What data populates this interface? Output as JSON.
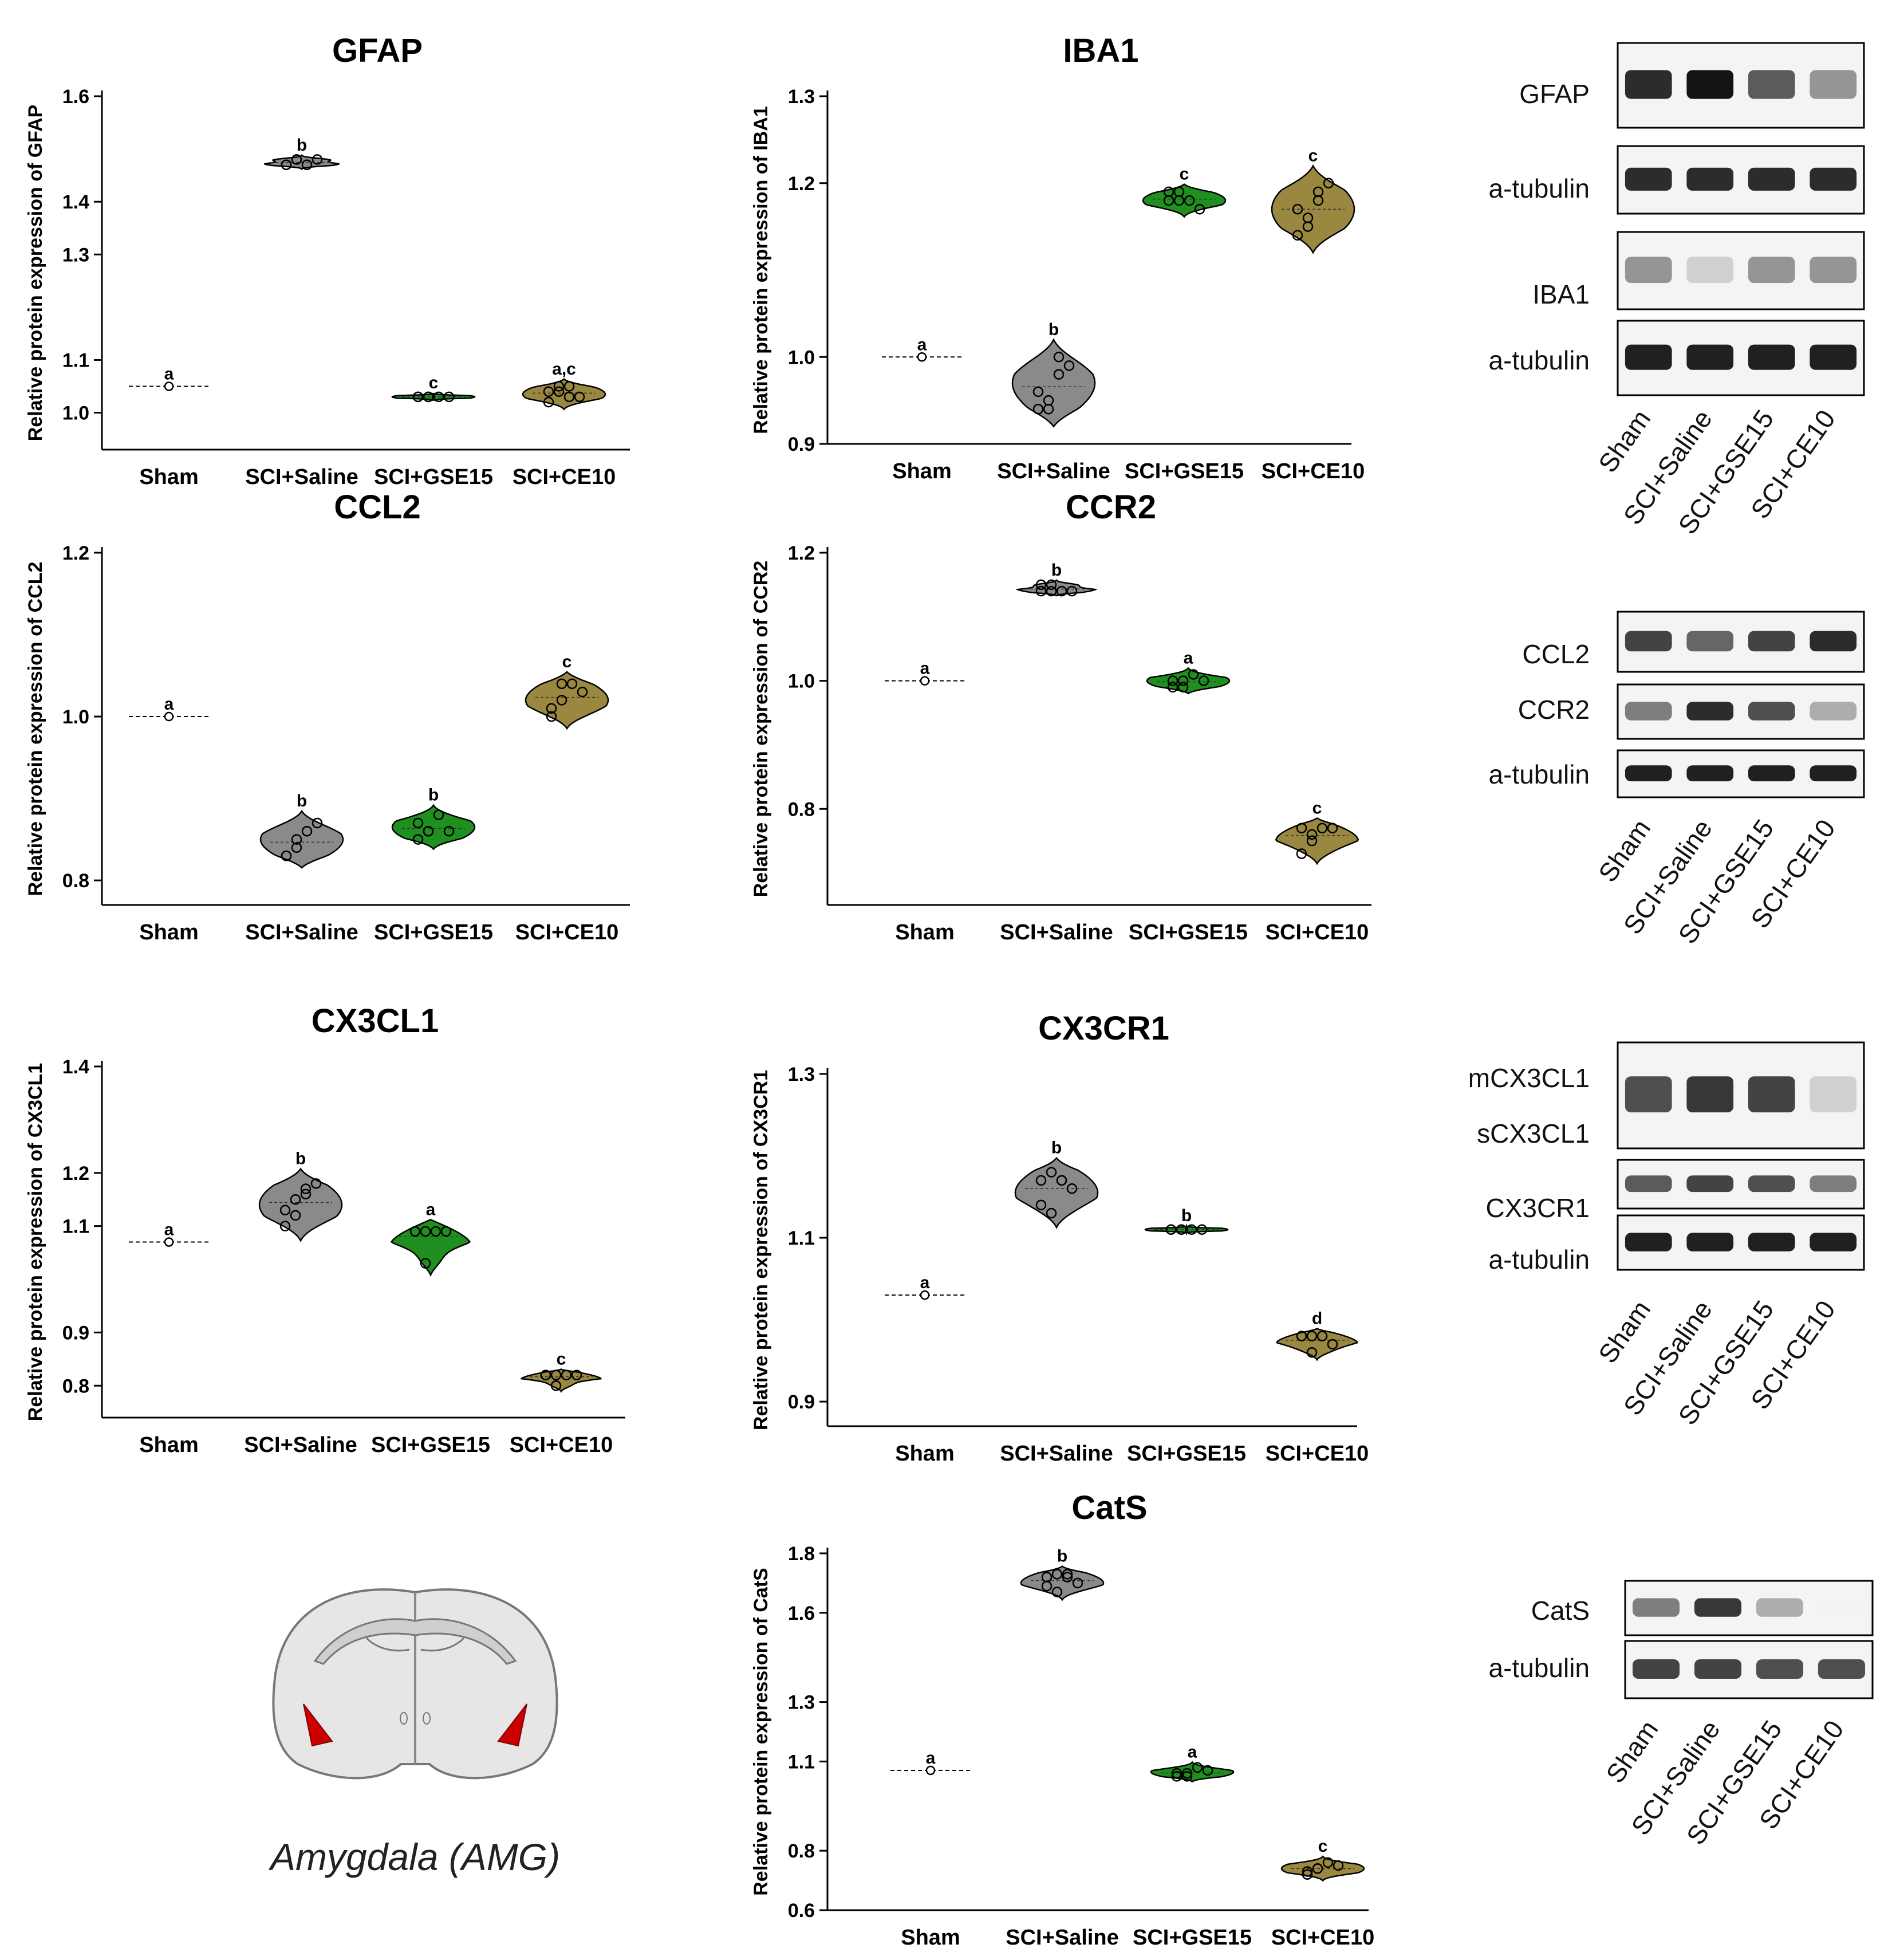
{
  "colors": {
    "Sham": "#ffffff",
    "SCI+Saline": "#8a8a8a",
    "SCI+GSE15": "#1f8f1f",
    "SCI+CE10": "#9a8840"
  },
  "chart_data": [
    {
      "type": "violin",
      "title": "GFAP",
      "ylabel": "Relative protein expression of GFAP",
      "ylim": [
        0.93,
        1.6
      ],
      "yticks": [
        "1.0",
        "1.1",
        "1.3",
        "1.4",
        "1.6"
      ],
      "categories": [
        "Sham",
        "SCI+Saline",
        "SCI+GSE15",
        "SCI+CE10"
      ],
      "series": [
        {
          "values": [
            1.05
          ],
          "letter": "a"
        },
        {
          "values": [
            1.47,
            1.48,
            1.47,
            1.48,
            1.47,
            1.48,
            1.47
          ],
          "letter": "b"
        },
        {
          "values": [
            1.03,
            1.03,
            1.03,
            1.03,
            1.03,
            1.03
          ],
          "letter": "c"
        },
        {
          "values": [
            1.02,
            1.04,
            1.05,
            1.03,
            1.04,
            1.05,
            1.03
          ],
          "letter": "a,c"
        }
      ]
    },
    {
      "type": "violin",
      "title": "IBA1",
      "ylabel": "Relative protein expression of IBA1",
      "ylim": [
        0.9,
        1.3
      ],
      "yticks": [
        "0.9",
        "1.0",
        "1.2",
        "1.3"
      ],
      "categories": [
        "Sham",
        "SCI+Saline",
        "SCI+GSE15",
        "SCI+CE10"
      ],
      "series": [
        {
          "values": [
            1.0
          ],
          "letter": "a"
        },
        {
          "values": [
            0.94,
            0.95,
            0.98,
            0.99,
            0.96,
            0.94,
            1.0
          ],
          "letter": "b"
        },
        {
          "values": [
            1.18,
            1.19,
            1.18,
            1.17,
            1.19,
            1.18
          ],
          "letter": "c"
        },
        {
          "values": [
            1.14,
            1.16,
            1.19,
            1.2,
            1.17,
            1.15,
            1.18
          ],
          "letter": "c"
        }
      ]
    },
    {
      "type": "violin",
      "title": "CCL2",
      "ylabel": "Relative protein expression of CCL2",
      "ylim": [
        0.77,
        1.2
      ],
      "yticks": [
        "0.8",
        "1.0",
        "1.2"
      ],
      "categories": [
        "Sham",
        "SCI+Saline",
        "SCI+GSE15",
        "SCI+CE10"
      ],
      "series": [
        {
          "values": [
            1.0
          ],
          "letter": "a"
        },
        {
          "values": [
            0.83,
            0.84,
            0.86,
            0.87,
            0.83,
            0.85
          ],
          "letter": "b"
        },
        {
          "values": [
            0.85,
            0.86,
            0.88,
            0.86,
            0.87,
            0.86
          ],
          "letter": "b"
        },
        {
          "values": [
            1.0,
            1.02,
            1.04,
            1.03,
            1.01,
            1.04
          ],
          "letter": "c"
        }
      ]
    },
    {
      "type": "violin",
      "title": "CCR2",
      "ylabel": "Relative protein expression of CCR2",
      "ylim": [
        0.65,
        1.2
      ],
      "yticks": [
        "0.8",
        "1.0",
        "1.2"
      ],
      "categories": [
        "Sham",
        "SCI+Saline",
        "SCI+GSE15",
        "SCI+CE10"
      ],
      "series": [
        {
          "values": [
            1.0
          ],
          "letter": "a"
        },
        {
          "values": [
            1.14,
            1.15,
            1.14,
            1.14,
            1.15,
            1.14
          ],
          "letter": "b"
        },
        {
          "values": [
            0.99,
            1.0,
            1.01,
            1.0,
            1.0,
            0.99
          ],
          "letter": "a"
        },
        {
          "values": [
            0.73,
            0.75,
            0.77,
            0.77,
            0.77,
            0.76
          ],
          "letter": "c"
        }
      ]
    },
    {
      "type": "violin",
      "title": "CX3CL1",
      "ylabel": "Relative protein expression of CX3CL1",
      "ylim": [
        0.74,
        1.4
      ],
      "yticks": [
        "0.8",
        "0.9",
        "1.1",
        "1.2",
        "1.4"
      ],
      "categories": [
        "Sham",
        "SCI+Saline",
        "SCI+GSE15",
        "SCI+CE10"
      ],
      "series": [
        {
          "values": [
            1.07
          ],
          "letter": "a"
        },
        {
          "values": [
            1.13,
            1.15,
            1.17,
            1.18,
            1.1,
            1.12,
            1.16
          ],
          "letter": "b"
        },
        {
          "values": [
            1.09,
            1.09,
            1.09,
            1.09,
            1.09,
            1.03
          ],
          "letter": "a"
        },
        {
          "values": [
            0.82,
            0.82,
            0.82,
            0.82,
            0.82,
            0.8
          ],
          "letter": "c"
        }
      ]
    },
    {
      "type": "violin",
      "title": "CX3CR1",
      "ylabel": "Relative protein expression of CX3CR1",
      "ylim": [
        0.87,
        1.3
      ],
      "yticks": [
        "0.9",
        "1.1",
        "1.3"
      ],
      "categories": [
        "Sham",
        "SCI+Saline",
        "SCI+GSE15",
        "SCI+CE10"
      ],
      "series": [
        {
          "values": [
            1.03
          ],
          "letter": "a"
        },
        {
          "values": [
            1.17,
            1.18,
            1.17,
            1.16,
            1.14,
            1.13,
            1.17
          ],
          "letter": "b"
        },
        {
          "values": [
            1.11,
            1.11,
            1.11,
            1.11,
            1.11,
            1.11
          ],
          "letter": "b"
        },
        {
          "values": [
            0.98,
            0.98,
            0.98,
            0.97,
            0.98,
            0.96
          ],
          "letter": "d"
        }
      ]
    },
    {
      "type": "violin",
      "title": "CatS",
      "ylabel": "Relative protein expression of CatS",
      "ylim": [
        0.6,
        1.8
      ],
      "yticks": [
        "0.6",
        "0.8",
        "1.1",
        "1.3",
        "1.6",
        "1.8"
      ],
      "categories": [
        "Sham",
        "SCI+Saline",
        "SCI+GSE15",
        "SCI+CE10"
      ],
      "series": [
        {
          "values": [
            1.07
          ],
          "letter": "a"
        },
        {
          "values": [
            1.72,
            1.73,
            1.72,
            1.7,
            1.69,
            1.67,
            1.73
          ],
          "letter": "b"
        },
        {
          "values": [
            1.05,
            1.06,
            1.08,
            1.07,
            1.06,
            1.05
          ],
          "letter": "a"
        },
        {
          "values": [
            0.72,
            0.74,
            0.76,
            0.75,
            0.73,
            0.74
          ],
          "letter": "c"
        }
      ]
    }
  ],
  "blots": [
    {
      "labels": [
        "GFAP",
        "a-tubulin",
        "IBA1",
        "a-tubulin"
      ],
      "lanes": [
        "Sham",
        "SCI+Saline",
        "SCI+GSE15",
        "SCI+CE10"
      ]
    },
    {
      "labels": [
        "CCL2",
        "CCR2",
        "a-tubulin"
      ],
      "lanes": [
        "Sham",
        "SCI+Saline",
        "SCI+GSE15",
        "SCI+CE10"
      ]
    },
    {
      "labels": [
        "mCX3CL1",
        "sCX3CL1",
        "CX3CR1",
        "a-tubulin"
      ],
      "lanes": [
        "Sham",
        "SCI+Saline",
        "SCI+GSE15",
        "SCI+CE10"
      ]
    },
    {
      "labels": [
        "CatS",
        "a-tubulin"
      ],
      "lanes": [
        "Sham",
        "SCI+Saline",
        "SCI+GSE15",
        "SCI+CE10"
      ]
    }
  ],
  "brain": {
    "region_label": "Amygdala (AMG)",
    "outline_color": "#777777",
    "fill_color": "#e6e6e6",
    "highlight_color": "#cc0000"
  }
}
